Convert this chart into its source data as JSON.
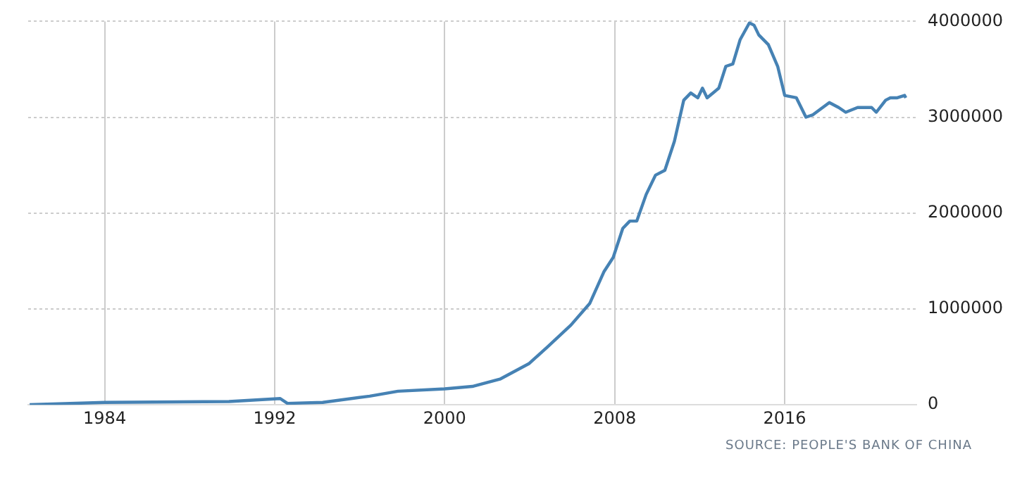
{
  "chart_data": {
    "type": "line",
    "x": [
      1980.47,
      1984,
      1989.85,
      1992.26,
      1992.6,
      1994.26,
      1996.47,
      1997.8,
      2000,
      2001.3,
      2002.6,
      2003.96,
      2004.84,
      2005.94,
      2006.83,
      2007.49,
      2007.93,
      2008.38,
      2008.71,
      2009.04,
      2009.48,
      2009.92,
      2010.36,
      2010.81,
      2011.25,
      2011.58,
      2011.91,
      2012.13,
      2012.35,
      2012.9,
      2013.23,
      2013.56,
      2013.9,
      2014.34,
      2014.56,
      2014.78,
      2015.23,
      2015.67,
      2016,
      2016.55,
      2017,
      2017.33,
      2018.1,
      2018.54,
      2018.87,
      2019.43,
      2020.09,
      2020.31,
      2020.75,
      2020.97,
      2021.3,
      2021.64,
      2021.7
    ],
    "series": [
      {
        "color": "#4682b4",
        "values": [
          2000,
          25000,
          35000,
          66000,
          15000,
          25000,
          91000,
          142000,
          167000,
          192000,
          268000,
          429000,
          605000,
          832000,
          1059000,
          1387000,
          1538000,
          1841000,
          1917000,
          1917000,
          2194000,
          2396000,
          2446000,
          2749000,
          3178000,
          3253000,
          3203000,
          3304000,
          3203000,
          3304000,
          3531000,
          3556000,
          3808000,
          3985000,
          3960000,
          3859000,
          3758000,
          3531000,
          3228000,
          3203000,
          3001000,
          3026000,
          3153000,
          3102000,
          3052000,
          3102000,
          3102000,
          3052000,
          3178000,
          3203000,
          3203000,
          3228000,
          3203000
        ]
      }
    ],
    "xlim": [
      1980.4,
      2022.2
    ],
    "xticks": [
      1984,
      1992,
      2000,
      2008,
      2016
    ],
    "ylim": [
      0,
      4000000
    ],
    "yticks": [
      0,
      1000000,
      2000000,
      3000000,
      4000000
    ],
    "grid": true,
    "marker": "none",
    "line_style": "solid",
    "annotations": [
      "SOURCE: PEOPLE'S BANK OF CHINA"
    ]
  }
}
